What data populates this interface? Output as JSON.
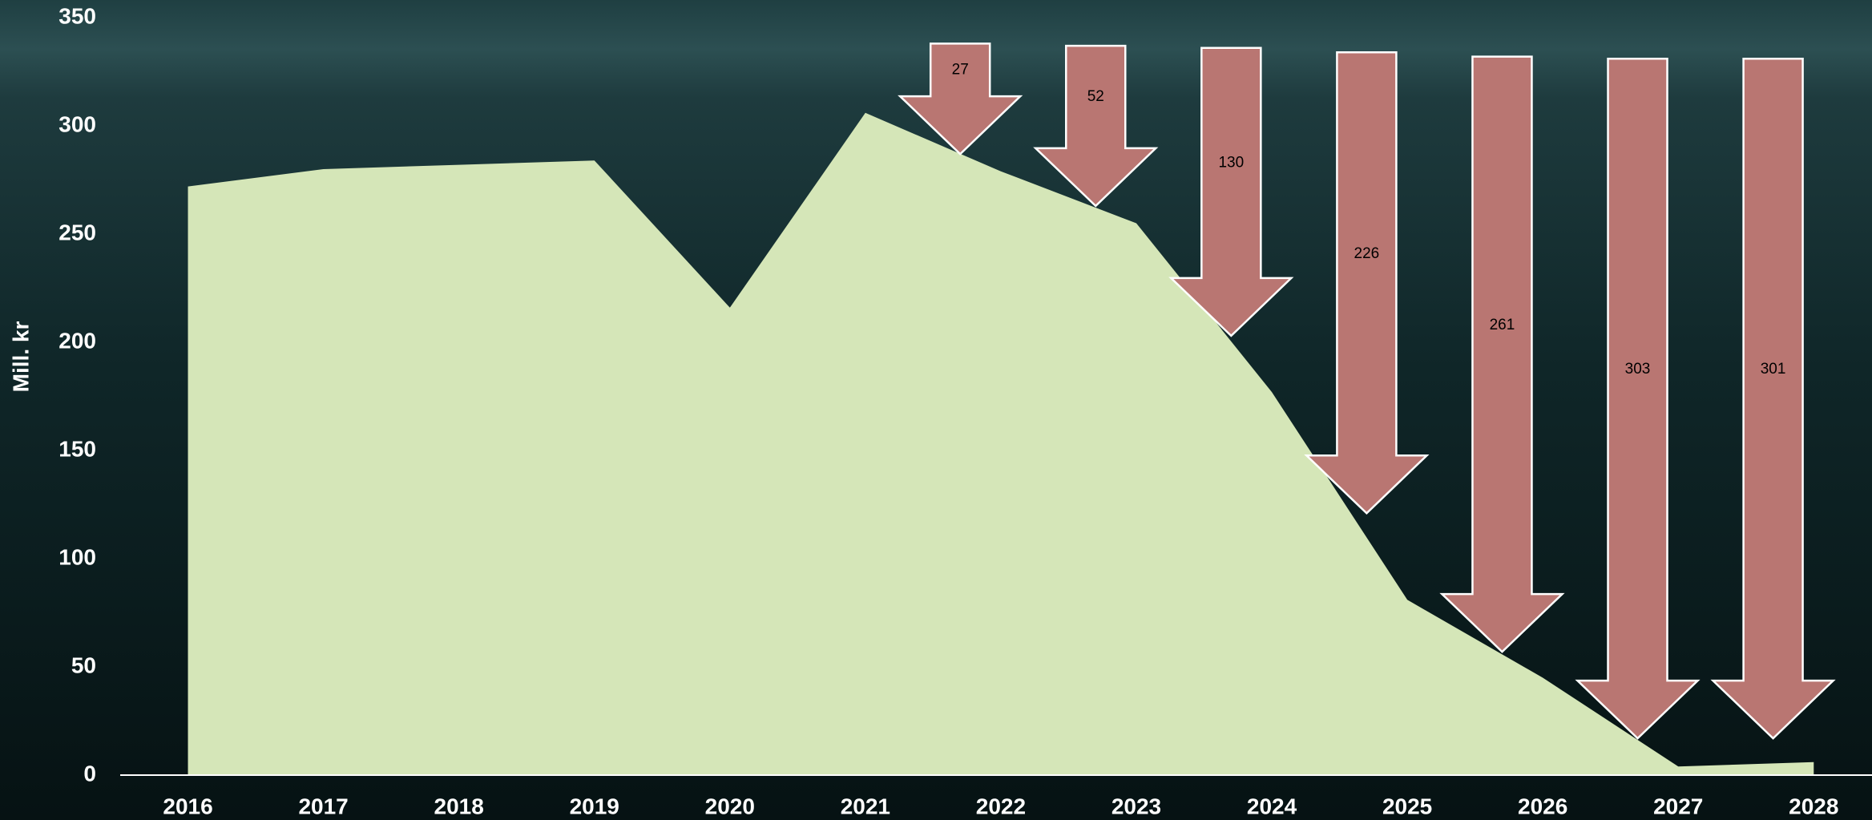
{
  "chart_data": {
    "type": "area",
    "ylabel": "Mill. kr",
    "color": "#d5e6b8",
    "x": [
      2016,
      2017,
      2018,
      2019,
      2020,
      2021,
      2022,
      2023,
      2024,
      2025,
      2026,
      2027,
      2028
    ],
    "values": [
      272,
      280,
      282,
      284,
      216,
      306,
      279,
      255,
      177,
      81,
      45,
      4,
      6
    ],
    "xlim": [
      2015.5,
      2028.43
    ],
    "xticks": [
      2016,
      2017,
      2018,
      2019,
      2020,
      2021,
      2022,
      2023,
      2024,
      2025,
      2026,
      2027,
      2028
    ],
    "ylim": [
      0,
      350
    ],
    "yticks": [
      0,
      50,
      100,
      150,
      200,
      250,
      300,
      350
    ],
    "arrow_color": "#b97672",
    "arrows": [
      {
        "x": 2021.7,
        "label": 27,
        "top": 338,
        "tip": 287
      },
      {
        "x": 2022.7,
        "label": 52,
        "top": 337,
        "tip": 263
      },
      {
        "x": 2023.7,
        "label": 130,
        "top": 336,
        "tip": 203
      },
      {
        "x": 2024.7,
        "label": 226,
        "top": 334,
        "tip": 121
      },
      {
        "x": 2025.7,
        "label": 261,
        "top": 332,
        "tip": 57
      },
      {
        "x": 2026.7,
        "label": 303,
        "top": 331,
        "tip": 17
      },
      {
        "x": 2027.7,
        "label": 301,
        "top": 331,
        "tip": 17
      }
    ]
  }
}
